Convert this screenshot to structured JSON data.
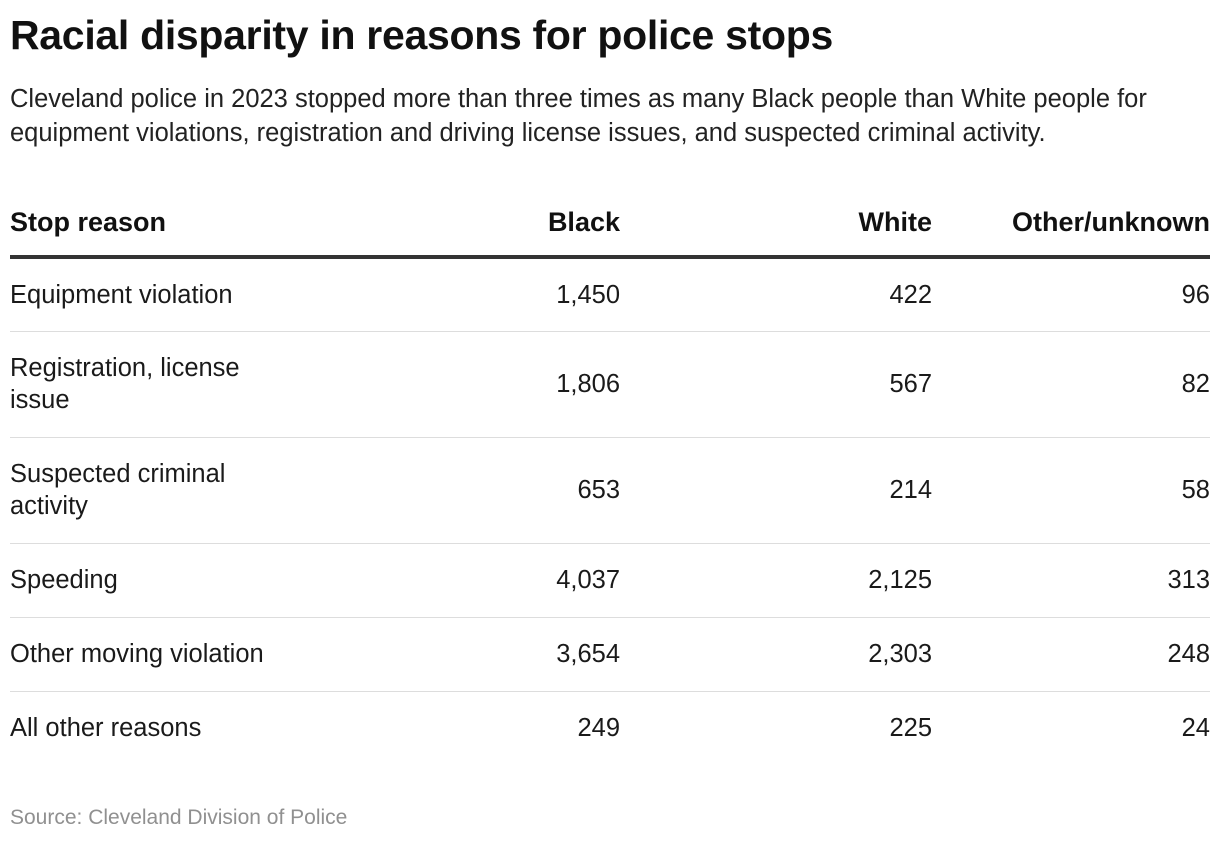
{
  "title": "Racial disparity in reasons for police stops",
  "subtitle": "Cleveland police in 2023 stopped more than three times as many Black people than White people for equipment violations, registration and driving license issues, and suspected criminal activity.",
  "source": "Source: Cleveland Division of Police",
  "chart_data": {
    "type": "table",
    "title": "Racial disparity in reasons for police stops",
    "columns": [
      "Stop reason",
      "Black",
      "White",
      "Other/unknown"
    ],
    "rows": [
      [
        "Equipment violation",
        "1,450",
        "422",
        "96"
      ],
      [
        "Registration, license issue",
        "1,806",
        "567",
        "82"
      ],
      [
        "Suspected criminal activity",
        "653",
        "214",
        "58"
      ],
      [
        "Speeding",
        "4,037",
        "2,125",
        "313"
      ],
      [
        "Other moving violation",
        "3,654",
        "2,303",
        "248"
      ],
      [
        "All other reasons",
        "249",
        "225",
        "24"
      ]
    ]
  },
  "colors": {
    "title": "#111111",
    "text": "#1a1a1a",
    "header_rule": "#333333",
    "row_rule": "#dddddd",
    "source": "#909090"
  }
}
